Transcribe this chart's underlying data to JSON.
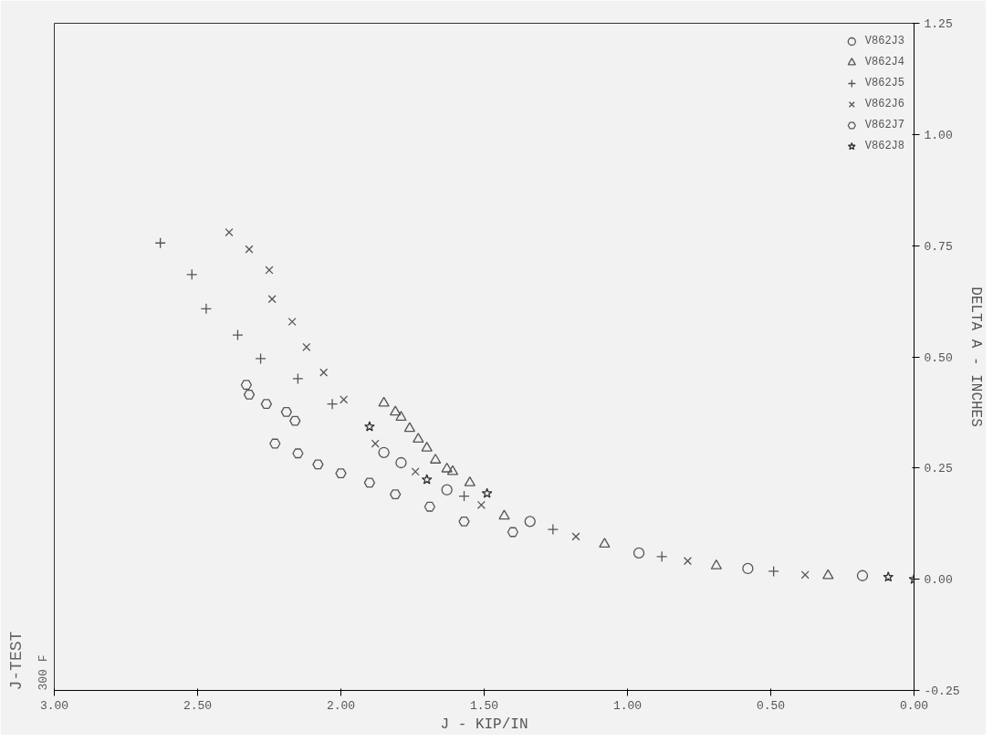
{
  "chart_data": {
    "type": "scatter",
    "title": "J-TEST",
    "subtitle": "300 F",
    "xlabel": "J - KIP/IN",
    "ylabel": "DELTA A - INCHES",
    "xlim": [
      3.0,
      0.0
    ],
    "ylim": [
      -0.25,
      1.25
    ],
    "xticks": [
      {
        "value": 3.0,
        "label": "3.00"
      },
      {
        "value": 2.5,
        "label": "2.50"
      },
      {
        "value": 2.0,
        "label": "2.00"
      },
      {
        "value": 1.5,
        "label": "1.50"
      },
      {
        "value": 1.0,
        "label": "1.00"
      },
      {
        "value": 0.5,
        "label": "0.50"
      },
      {
        "value": 0.0,
        "label": "0.00"
      }
    ],
    "yticks": [
      {
        "value": -0.25,
        "label": "-0.25"
      },
      {
        "value": 0.0,
        "label": "0.00"
      },
      {
        "value": 0.25,
        "label": "0.25"
      },
      {
        "value": 0.5,
        "label": "0.50"
      },
      {
        "value": 0.75,
        "label": "0.75"
      },
      {
        "value": 1.0,
        "label": "1.00"
      },
      {
        "value": 1.25,
        "label": "1.25"
      }
    ],
    "grid": false,
    "legend": "top right",
    "series": [
      {
        "name": "V862J3",
        "marker": "circle",
        "color": "#555555",
        "x": [
          0.18,
          0.58,
          0.96,
          1.34,
          1.63,
          1.79,
          1.85
        ],
        "values": [
          0.008,
          0.024,
          0.059,
          0.13,
          0.201,
          0.262,
          0.285
        ]
      },
      {
        "name": "V862J4",
        "marker": "triangle",
        "color": "#555555",
        "x": [
          0.3,
          0.69,
          1.08,
          1.43,
          1.55,
          1.61,
          1.63,
          1.67,
          1.7,
          1.73,
          1.76,
          1.79,
          1.81,
          1.85
        ],
        "values": [
          0.008,
          0.03,
          0.079,
          0.142,
          0.217,
          0.242,
          0.248,
          0.268,
          0.295,
          0.315,
          0.339,
          0.364,
          0.376,
          0.396
        ]
      },
      {
        "name": "V862J5",
        "marker": "cross",
        "color": "#555555",
        "x": [
          0.49,
          0.88,
          1.26,
          1.57,
          2.03,
          2.15,
          2.28,
          2.36,
          2.47,
          2.52,
          2.63
        ],
        "values": [
          0.018,
          0.051,
          0.112,
          0.187,
          0.394,
          0.451,
          0.496,
          0.549,
          0.608,
          0.685,
          0.756
        ]
      },
      {
        "name": "V862J6",
        "marker": "x",
        "color": "#555555",
        "x": [
          0.38,
          0.79,
          1.18,
          1.51,
          1.74,
          1.88,
          1.99,
          2.06,
          2.12,
          2.17,
          2.24,
          2.25,
          2.32,
          2.39
        ],
        "values": [
          0.01,
          0.041,
          0.096,
          0.167,
          0.242,
          0.305,
          0.404,
          0.465,
          0.522,
          0.579,
          0.63,
          0.695,
          0.742,
          0.78
        ]
      },
      {
        "name": "V862J7",
        "marker": "diamond",
        "color": "#555555",
        "x": [
          1.4,
          1.57,
          1.69,
          1.81,
          1.9,
          2.0,
          2.08,
          2.15,
          2.23,
          2.16,
          2.19,
          2.26,
          2.32,
          2.33
        ],
        "values": [
          0.106,
          0.13,
          0.163,
          0.191,
          0.217,
          0.238,
          0.258,
          0.283,
          0.305,
          0.356,
          0.376,
          0.394,
          0.415,
          0.437
        ]
      },
      {
        "name": "V862J8",
        "marker": "star",
        "color": "#333333",
        "x": [
          0.0,
          0.09,
          1.49,
          1.7,
          1.9
        ],
        "values": [
          0.0,
          0.005,
          0.193,
          0.224,
          0.343
        ]
      }
    ]
  }
}
